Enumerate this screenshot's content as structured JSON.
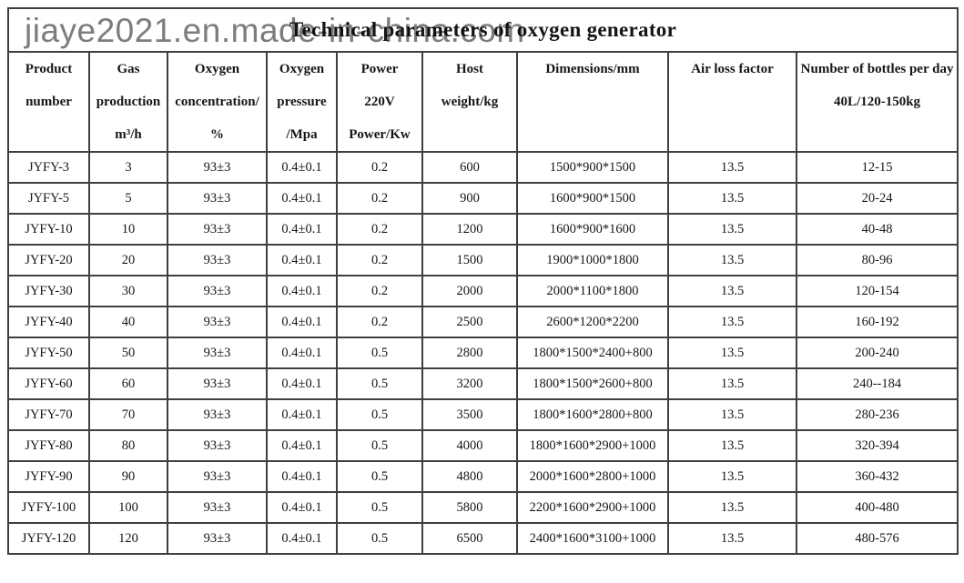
{
  "watermark": "jiaye2021.en.made-in-china.com",
  "title": "Technical parameters of oxygen generator",
  "colors": {
    "border": "#3f3f3f",
    "text": "#161616",
    "watermark": "#7d7d7d",
    "background": "#ffffff"
  },
  "table": {
    "columns": [
      {
        "id": "product-number",
        "lines": [
          "Product",
          "number"
        ]
      },
      {
        "id": "gas-production",
        "lines": [
          "Gas",
          "production",
          "m³/h"
        ]
      },
      {
        "id": "oxygen-concentration",
        "lines": [
          "Oxygen",
          "concentration/",
          "%"
        ]
      },
      {
        "id": "oxygen-pressure",
        "lines": [
          "Oxygen",
          "pressure",
          "/Mpa"
        ]
      },
      {
        "id": "power",
        "lines": [
          "Power",
          "220V",
          "Power/Kw"
        ]
      },
      {
        "id": "host-weight",
        "lines": [
          "Host",
          "weight/kg"
        ]
      },
      {
        "id": "dimensions",
        "lines": [
          "Dimensions/mm"
        ]
      },
      {
        "id": "air-loss-factor",
        "lines": [
          "Air loss factor"
        ]
      },
      {
        "id": "bottles-per-day",
        "lines": [
          "Number of bottles per day",
          "40L/120-150kg"
        ]
      }
    ],
    "rows": [
      [
        "JYFY-3",
        "3",
        "93±3",
        "0.4±0.1",
        "0.2",
        "600",
        "1500*900*1500",
        "13.5",
        "12-15"
      ],
      [
        "JYFY-5",
        "5",
        "93±3",
        "0.4±0.1",
        "0.2",
        "900",
        "1600*900*1500",
        "13.5",
        "20-24"
      ],
      [
        "JYFY-10",
        "10",
        "93±3",
        "0.4±0.1",
        "0.2",
        "1200",
        "1600*900*1600",
        "13.5",
        "40-48"
      ],
      [
        "JYFY-20",
        "20",
        "93±3",
        "0.4±0.1",
        "0.2",
        "1500",
        "1900*1000*1800",
        "13.5",
        "80-96"
      ],
      [
        "JYFY-30",
        "30",
        "93±3",
        "0.4±0.1",
        "0.2",
        "2000",
        "2000*1100*1800",
        "13.5",
        "120-154"
      ],
      [
        "JYFY-40",
        "40",
        "93±3",
        "0.4±0.1",
        "0.2",
        "2500",
        "2600*1200*2200",
        "13.5",
        "160-192"
      ],
      [
        "JYFY-50",
        "50",
        "93±3",
        "0.4±0.1",
        "0.5",
        "2800",
        "1800*1500*2400+800",
        "13.5",
        "200-240"
      ],
      [
        "JYFY-60",
        "60",
        "93±3",
        "0.4±0.1",
        "0.5",
        "3200",
        "1800*1500*2600+800",
        "13.5",
        "240--184"
      ],
      [
        "JYFY-70",
        "70",
        "93±3",
        "0.4±0.1",
        "0.5",
        "3500",
        "1800*1600*2800+800",
        "13.5",
        "280-236"
      ],
      [
        "JYFY-80",
        "80",
        "93±3",
        "0.4±0.1",
        "0.5",
        "4000",
        "1800*1600*2900+1000",
        "13.5",
        "320-394"
      ],
      [
        "JYFY-90",
        "90",
        "93±3",
        "0.4±0.1",
        "0.5",
        "4800",
        "2000*1600*2800+1000",
        "13.5",
        "360-432"
      ],
      [
        "JYFY-100",
        "100",
        "93±3",
        "0.4±0.1",
        "0.5",
        "5800",
        "2200*1600*2900+1000",
        "13.5",
        "400-480"
      ],
      [
        "JYFY-120",
        "120",
        "93±3",
        "0.4±0.1",
        "0.5",
        "6500",
        "2400*1600*3100+1000",
        "13.5",
        "480-576"
      ]
    ]
  }
}
